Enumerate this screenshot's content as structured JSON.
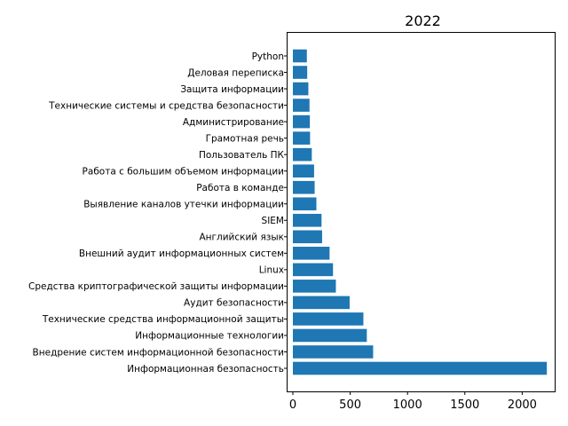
{
  "chart_data": {
    "type": "bar",
    "orientation": "horizontal",
    "title": "2022",
    "xlabel": "",
    "ylabel": "",
    "xlim": [
      0,
      2330
    ],
    "xticks": [
      0,
      500,
      1000,
      1500,
      2000
    ],
    "xtick_labels": [
      "0",
      "500",
      "1000",
      "1500",
      "2000"
    ],
    "grid": false,
    "bar_color": "#1f77b4",
    "categories": [
      "Информационная безопасность",
      "Внедрение систем информационной безопасности",
      "Информационные технологии",
      "Технические средства информационной защиты",
      "Аудит безопасности",
      "Средства криптографической защиты информации",
      "Linux",
      "Внешний аудит информационных систем",
      "Английский язык",
      "SIEM",
      "Выявление каналов утечки информации",
      "Работа в команде",
      "Работа с большим объемом информации",
      "Пользователь ПК",
      "Грамотная речь",
      "Администрирование",
      "Технические системы и средства безопасности",
      "Защита информации",
      "Деловая переписка",
      "Python"
    ],
    "values": [
      2215,
      700,
      645,
      615,
      495,
      375,
      350,
      320,
      255,
      250,
      205,
      190,
      185,
      165,
      150,
      148,
      145,
      135,
      125,
      122
    ]
  }
}
